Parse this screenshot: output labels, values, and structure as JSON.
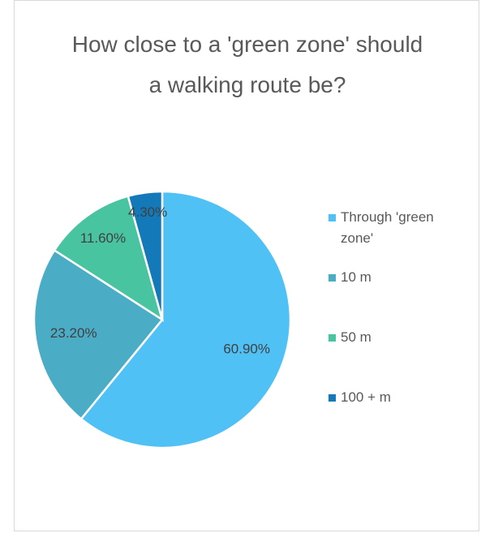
{
  "chart_data": {
    "type": "pie",
    "title": "How close to a 'green zone' should a walking route be?",
    "categories": [
      "Through 'green zone'",
      "10 m",
      "50 m",
      "100 + m"
    ],
    "values": [
      60.9,
      23.2,
      11.6,
      4.3
    ],
    "value_labels": [
      "60.90%",
      "23.20%",
      "11.60%",
      "4.30%"
    ],
    "colors": [
      "#4fc1f5",
      "#4bacc6",
      "#48c4a0",
      "#1479b8"
    ],
    "legend": "right"
  }
}
